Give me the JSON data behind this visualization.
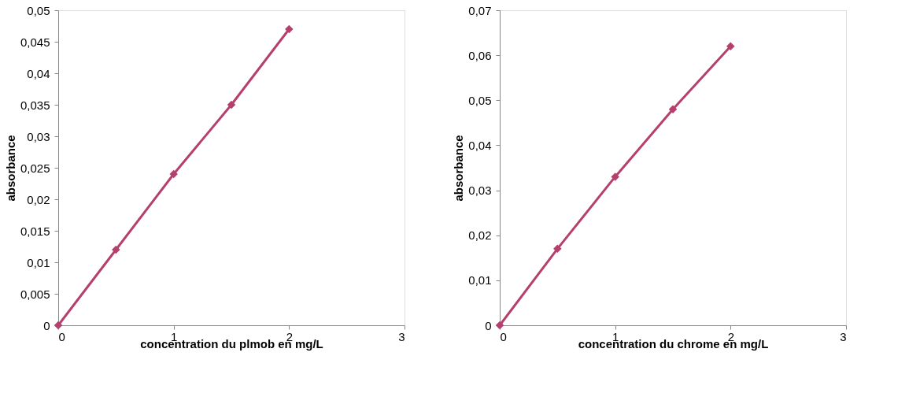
{
  "chart_data": [
    {
      "type": "line",
      "xlabel": "concentration du plmob en mg/L",
      "ylabel": "absorbance",
      "x": [
        0,
        0.5,
        1,
        1.5,
        2
      ],
      "series": [
        {
          "color": "#b5406e",
          "values": [
            0,
            0.012,
            0.024,
            0.035,
            0.047
          ]
        }
      ],
      "xlim": [
        0,
        3
      ],
      "xticks": [
        0,
        1,
        2,
        3
      ],
      "ylim": [
        0,
        0.05
      ],
      "yticks": [
        0,
        {
          "value": 0.005,
          "label": "0,005"
        },
        {
          "value": 0.01,
          "label": "0,01"
        },
        {
          "value": 0.015,
          "label": "0,015"
        },
        {
          "value": 0.02,
          "label": "0,02"
        },
        {
          "value": 0.025,
          "label": "0,025"
        },
        {
          "value": 0.03,
          "label": "0,03"
        },
        {
          "value": 0.035,
          "label": "0,035"
        },
        {
          "value": 0.04,
          "label": "0,04"
        },
        {
          "value": 0.045,
          "label": "0,045"
        },
        {
          "value": 0.05,
          "label": "0,05"
        }
      ],
      "grid": false,
      "marker": "diamond",
      "line_style": "solid"
    },
    {
      "type": "line",
      "xlabel": "concentration du chrome en mg/L",
      "ylabel": "absorbance",
      "x": [
        0,
        0.5,
        1,
        1.5,
        2
      ],
      "series": [
        {
          "color": "#b5406e",
          "values": [
            0,
            0.017,
            0.033,
            0.048,
            0.062
          ]
        }
      ],
      "xlim": [
        0,
        3
      ],
      "xticks": [
        0,
        1,
        2,
        3
      ],
      "ylim": [
        0,
        0.07
      ],
      "yticks": [
        0,
        {
          "value": 0.01,
          "label": "0,01"
        },
        {
          "value": 0.02,
          "label": "0,02"
        },
        {
          "value": 0.03,
          "label": "0,03"
        },
        {
          "value": 0.04,
          "label": "0,04"
        },
        {
          "value": 0.05,
          "label": "0,05"
        },
        {
          "value": 0.06,
          "label": "0,06"
        },
        {
          "value": 0.07,
          "label": "0,07"
        }
      ],
      "grid": false,
      "marker": "diamond",
      "line_style": "solid"
    }
  ]
}
